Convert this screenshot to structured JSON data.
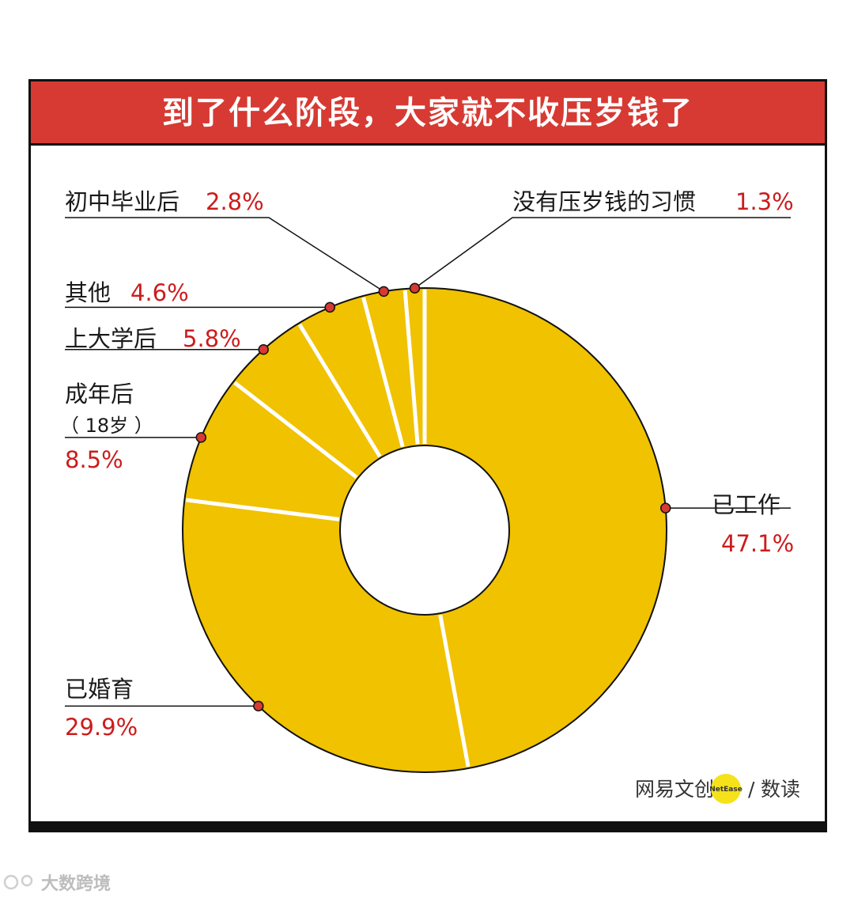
{
  "chart_data": {
    "type": "pie",
    "title": "到了什么阶段，大家就不收压岁钱了",
    "start_angle_deg": 0,
    "slices": [
      {
        "label": "已工作",
        "value": 47.1,
        "value_label": "47.1%"
      },
      {
        "label": "已婚育",
        "value": 29.9,
        "value_label": "29.9%"
      },
      {
        "label": "成年后",
        "label_sub": "（ 18岁 ）",
        "value": 8.5,
        "value_label": "8.5%"
      },
      {
        "label": "上大学后",
        "value": 5.8,
        "value_label": "5.8%"
      },
      {
        "label": "其他",
        "value": 4.6,
        "value_label": "4.6%"
      },
      {
        "label": "初中毕业后",
        "value": 2.8,
        "value_label": "2.8%"
      },
      {
        "label": "没有压岁钱的习惯",
        "value": 1.3,
        "value_label": "1.3%"
      }
    ],
    "colors": {
      "slice": "#f0c200",
      "separator": "#ffffff",
      "accent": "#d63a33",
      "percent": "#cc1c1c"
    }
  },
  "branding": {
    "logo_text": "网易文创",
    "logo_badge": "NetEase",
    "logo_slash": "/",
    "logo_suffix": "数读",
    "badge_color": "#f5e21a",
    "watermark": "大数跨境"
  }
}
